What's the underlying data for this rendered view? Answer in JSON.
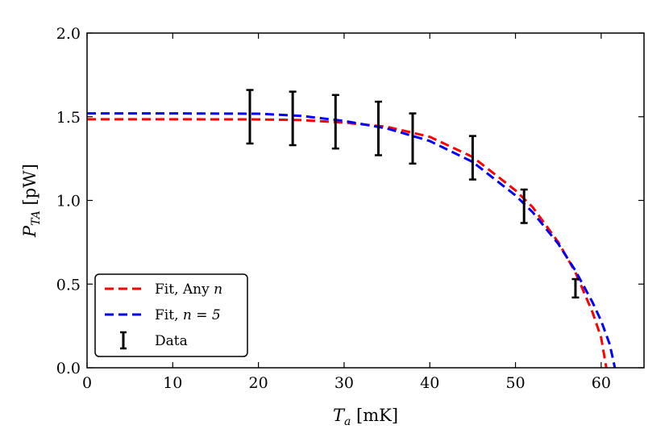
{
  "chart_data": {
    "type": "line",
    "title": "",
    "xlabel": {
      "main": "T",
      "sub": "a",
      "unit": " [mK]"
    },
    "ylabel": {
      "main": "P",
      "sub": "TA",
      "unit": " [pW]"
    },
    "xlim": [
      0,
      65
    ],
    "ylim": [
      0.0,
      2.0
    ],
    "xticks": [
      0,
      10,
      20,
      30,
      40,
      50,
      60
    ],
    "yticks": [
      0.0,
      0.5,
      1.0,
      1.5,
      2.0
    ],
    "xtick_labels": [
      "0",
      "10",
      "20",
      "30",
      "40",
      "50",
      "60"
    ],
    "ytick_labels": [
      "0.0",
      "0.5",
      "1.0",
      "1.5",
      "2.0"
    ],
    "grid": false,
    "legend_position": "bottom-left",
    "series": [
      {
        "name": "Fit, Any n",
        "legend_text": "Fit, Any ",
        "legend_var": "n",
        "style": "dashed",
        "color": "#ff0000",
        "x": [
          0,
          10,
          20,
          25,
          30,
          35,
          40,
          45,
          50,
          52,
          55,
          57,
          59,
          60,
          60.6
        ],
        "y": [
          1.485,
          1.485,
          1.484,
          1.48,
          1.465,
          1.44,
          1.38,
          1.26,
          1.06,
          0.96,
          0.75,
          0.57,
          0.33,
          0.18,
          0.0
        ]
      },
      {
        "name": "Fit, n = 5",
        "legend_text": "Fit, ",
        "legend_var": "n = 5",
        "style": "dashed",
        "color": "#0000ff",
        "x": [
          0,
          10,
          20,
          25,
          30,
          35,
          40,
          45,
          50,
          52,
          55,
          57,
          59,
          60,
          61,
          61.6
        ],
        "y": [
          1.52,
          1.52,
          1.518,
          1.505,
          1.475,
          1.43,
          1.355,
          1.23,
          1.03,
          0.93,
          0.74,
          0.58,
          0.39,
          0.28,
          0.14,
          0.0
        ]
      }
    ],
    "errorbars": {
      "name": "Data",
      "color": "#000000",
      "points": [
        {
          "x": 19,
          "y": 1.5,
          "err": 0.16
        },
        {
          "x": 24,
          "y": 1.49,
          "err": 0.16
        },
        {
          "x": 29,
          "y": 1.47,
          "err": 0.16
        },
        {
          "x": 34,
          "y": 1.43,
          "err": 0.16
        },
        {
          "x": 38,
          "y": 1.37,
          "err": 0.15
        },
        {
          "x": 45,
          "y": 1.255,
          "err": 0.13
        },
        {
          "x": 51,
          "y": 0.965,
          "err": 0.1
        },
        {
          "x": 57,
          "y": 0.475,
          "err": 0.055
        }
      ]
    }
  }
}
